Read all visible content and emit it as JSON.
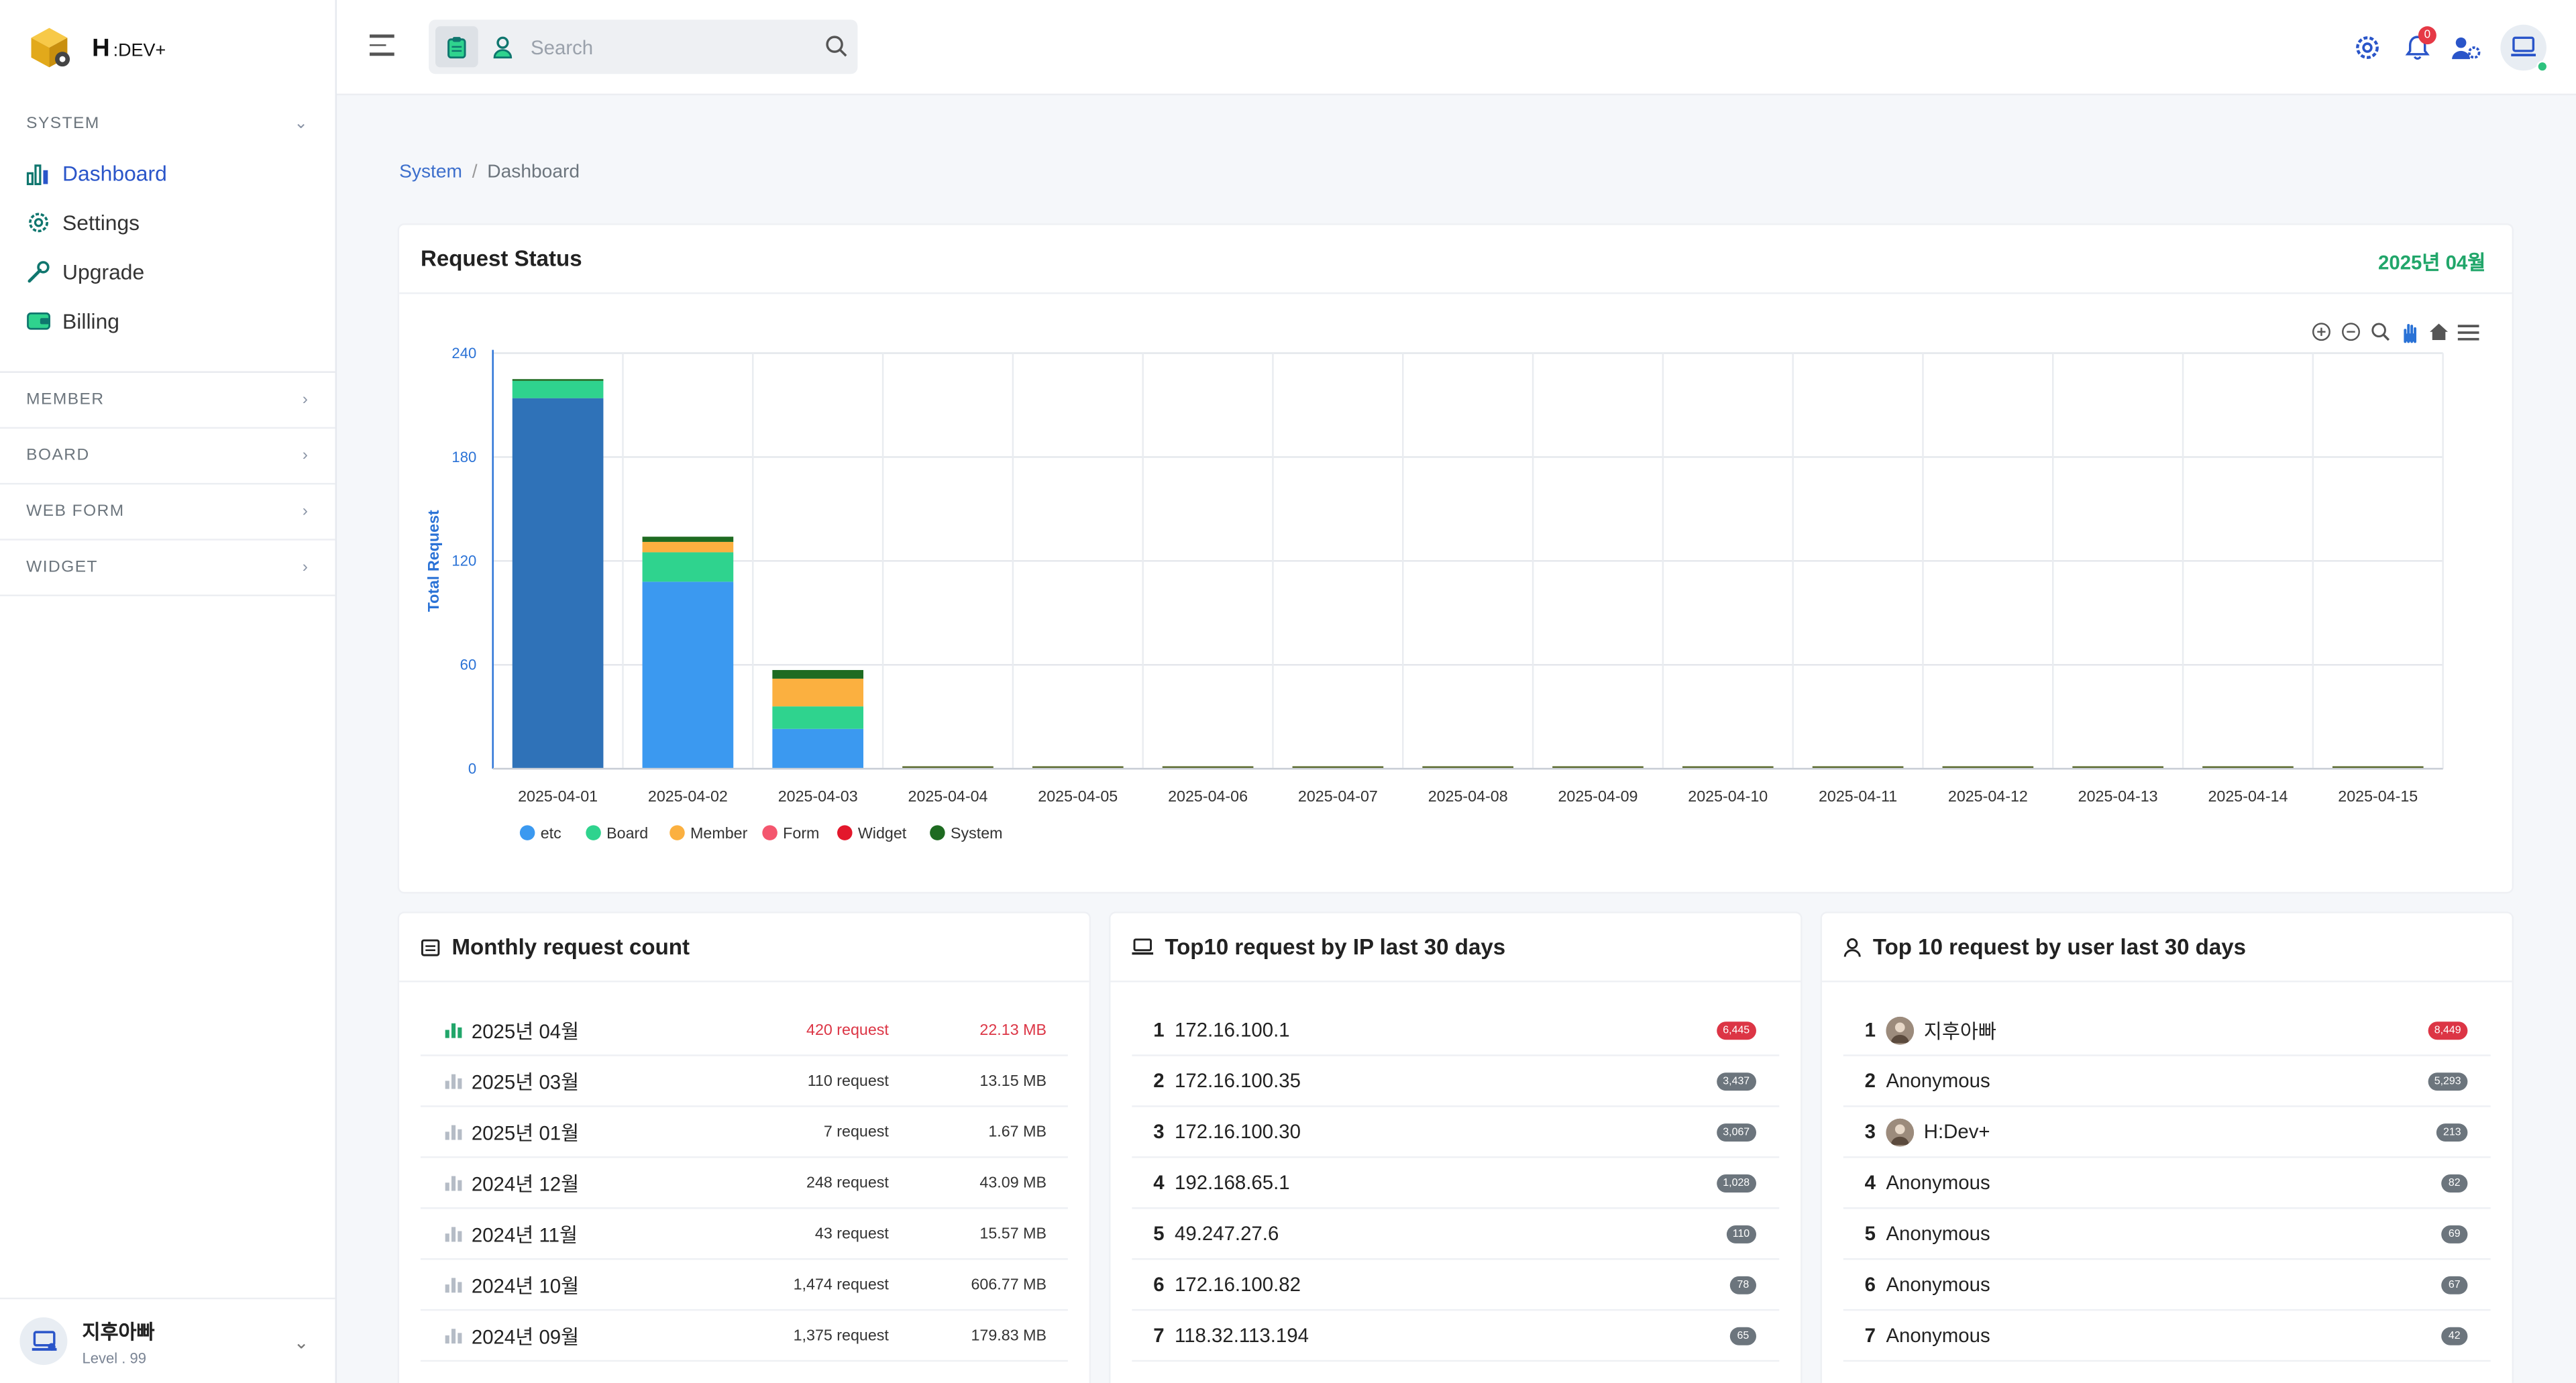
{
  "brand": {
    "name": "H",
    "suffix": ":DEV+"
  },
  "sidebar": {
    "system_title": "SYSTEM",
    "items": [
      {
        "label": "Dashboard",
        "icon": "chart-bar-icon",
        "active": true
      },
      {
        "label": "Settings",
        "icon": "gear-icon"
      },
      {
        "label": "Upgrade",
        "icon": "wrench-icon"
      },
      {
        "label": "Billing",
        "icon": "wallet-icon"
      }
    ],
    "sections": [
      "MEMBER",
      "BOARD",
      "WEB FORM",
      "WIDGET"
    ],
    "user": {
      "name": "지후아빠",
      "level": "Level . 99"
    }
  },
  "topbar": {
    "search": {
      "placeholder": "Search",
      "value": ""
    },
    "notifications": "0"
  },
  "breadcrumb": {
    "parent": "System",
    "current": "Dashboard"
  },
  "request_status": {
    "title": "Request Status",
    "period": "2025년 04월",
    "colors": {
      "etc": "#3b99f0",
      "Board": "#2fd38e",
      "Member": "#fbb040",
      "Form": "#f4566e",
      "Widget": "#e3172b",
      "System": "#1e6b21",
      "selected": "#2f72b8"
    }
  },
  "chart_data": {
    "type": "bar",
    "stacked": true,
    "ylabel": "Total Request",
    "xlabel": "",
    "ylim": [
      0,
      240
    ],
    "yticks": [
      0,
      60,
      120,
      180,
      240
    ],
    "grid": true,
    "legend_position": "bottom-left",
    "categories": [
      "2025-04-01",
      "2025-04-02",
      "2025-04-03",
      "2025-04-04",
      "2025-04-05",
      "2025-04-06",
      "2025-04-07",
      "2025-04-08",
      "2025-04-09",
      "2025-04-10",
      "2025-04-11",
      "2025-04-12",
      "2025-04-13",
      "2025-04-14",
      "2025-04-15"
    ],
    "series": [
      {
        "name": "etc",
        "values": [
          214,
          108,
          23,
          0,
          0,
          0,
          0,
          0,
          0,
          0,
          0,
          0,
          0,
          0,
          0
        ]
      },
      {
        "name": "Board",
        "values": [
          10,
          17,
          13,
          0,
          0,
          0,
          0,
          0,
          0,
          0,
          0,
          0,
          0,
          0,
          0
        ]
      },
      {
        "name": "Member",
        "values": [
          0,
          6,
          16,
          0,
          0,
          0,
          0,
          0,
          0,
          0,
          0,
          0,
          0,
          0,
          0
        ]
      },
      {
        "name": "Form",
        "values": [
          0,
          0,
          0,
          0,
          0,
          0,
          0,
          0,
          0,
          0,
          0,
          0,
          0,
          0,
          0
        ]
      },
      {
        "name": "Widget",
        "values": [
          0,
          0,
          0,
          0,
          0,
          0,
          0,
          0,
          0,
          0,
          0,
          0,
          0,
          0,
          0
        ]
      },
      {
        "name": "System",
        "values": [
          1,
          3,
          5,
          0,
          0,
          0,
          0,
          0,
          0,
          0,
          0,
          0,
          0,
          0,
          0
        ]
      }
    ]
  },
  "monthly": {
    "title": "Monthly request count",
    "rows": [
      {
        "month": "2025년 04월",
        "requests": "420 request",
        "size": "22.13 MB",
        "hot": true
      },
      {
        "month": "2025년 03월",
        "requests": "110 request",
        "size": "13.15 MB"
      },
      {
        "month": "2025년 01월",
        "requests": "7 request",
        "size": "1.67 MB"
      },
      {
        "month": "2024년 12월",
        "requests": "248 request",
        "size": "43.09 MB"
      },
      {
        "month": "2024년 11월",
        "requests": "43 request",
        "size": "15.57 MB"
      },
      {
        "month": "2024년 10월",
        "requests": "1,474 request",
        "size": "606.77 MB"
      },
      {
        "month": "2024년 09월",
        "requests": "1,375 request",
        "size": "179.83 MB"
      }
    ]
  },
  "top_ip": {
    "title": "Top10 request by IP last 30 days",
    "rows": [
      {
        "rank": "1",
        "ip": "172.16.100.1",
        "count": "6,445",
        "hot": true
      },
      {
        "rank": "2",
        "ip": "172.16.100.35",
        "count": "3,437"
      },
      {
        "rank": "3",
        "ip": "172.16.100.30",
        "count": "3,067"
      },
      {
        "rank": "4",
        "ip": "192.168.65.1",
        "count": "1,028"
      },
      {
        "rank": "5",
        "ip": "49.247.27.6",
        "count": "110"
      },
      {
        "rank": "6",
        "ip": "172.16.100.82",
        "count": "78"
      },
      {
        "rank": "7",
        "ip": "118.32.113.194",
        "count": "65"
      }
    ]
  },
  "top_user": {
    "title": "Top 10 request by user last 30 days",
    "rows": [
      {
        "rank": "1",
        "user": "지후아빠",
        "count": "8,449",
        "hot": true,
        "avatar": true
      },
      {
        "rank": "2",
        "user": "Anonymous",
        "count": "5,293"
      },
      {
        "rank": "3",
        "user": "H:Dev+",
        "count": "213",
        "avatar": true
      },
      {
        "rank": "4",
        "user": "Anonymous",
        "count": "82"
      },
      {
        "rank": "5",
        "user": "Anonymous",
        "count": "69"
      },
      {
        "rank": "6",
        "user": "Anonymous",
        "count": "67"
      },
      {
        "rank": "7",
        "user": "Anonymous",
        "count": "42"
      }
    ]
  }
}
